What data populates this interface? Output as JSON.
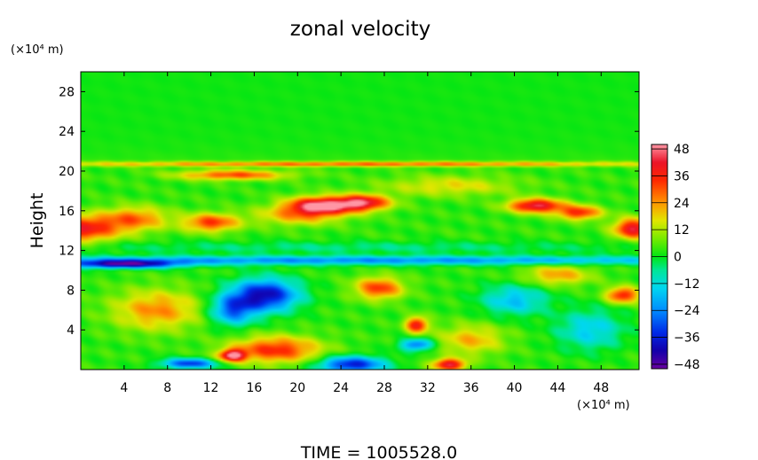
{
  "chart_data": {
    "type": "heatmap",
    "title": "zonal velocity",
    "xlabel": "",
    "ylabel": "Height",
    "x_unit": "(×10⁴ m)",
    "y_unit": "(×10⁴ m)",
    "xlim": [
      0,
      51.5
    ],
    "ylim": [
      0,
      30
    ],
    "x_ticks": [
      4,
      8,
      12,
      16,
      20,
      24,
      28,
      32,
      36,
      40,
      44,
      48
    ],
    "y_ticks": [
      4,
      8,
      12,
      16,
      20,
      24,
      28
    ],
    "colorbar": {
      "range": [
        -50,
        50
      ],
      "ticks": [
        48,
        36,
        24,
        12,
        0,
        -12,
        -24,
        -36,
        -48
      ],
      "tick_labels": [
        "48",
        "36",
        "24",
        "12",
        "0",
        "−12",
        "−24",
        "−36",
        "−48"
      ]
    },
    "background_value": 3,
    "features": [
      {
        "x": 0,
        "y": 14.2,
        "sx": 3.5,
        "sy": 1.3,
        "v": 36
      },
      {
        "x": 5,
        "y": 15.2,
        "sx": 3.0,
        "sy": 1.2,
        "v": 24
      },
      {
        "x": 12,
        "y": 14.8,
        "sx": 2.5,
        "sy": 0.9,
        "v": 30
      },
      {
        "x": 22,
        "y": 16.5,
        "sx": 3.0,
        "sy": 0.9,
        "v": 45
      },
      {
        "x": 26,
        "y": 16.8,
        "sx": 2.5,
        "sy": 0.8,
        "v": 40
      },
      {
        "x": 20,
        "y": 15.5,
        "sx": 4.0,
        "sy": 1.0,
        "v": 18
      },
      {
        "x": 42,
        "y": 16.5,
        "sx": 2.5,
        "sy": 0.7,
        "v": 42
      },
      {
        "x": 46,
        "y": 15.8,
        "sx": 2.0,
        "sy": 0.7,
        "v": 32
      },
      {
        "x": 51,
        "y": 14.2,
        "sx": 1.8,
        "sy": 1.0,
        "v": 40
      },
      {
        "x": 14,
        "y": 19.6,
        "sx": 5.0,
        "sy": 0.5,
        "v": 28
      },
      {
        "x": 34,
        "y": 18.5,
        "sx": 6.0,
        "sy": 1.0,
        "v": 14
      },
      {
        "x": 25,
        "y": 20.7,
        "sx": 30,
        "sy": 0.25,
        "v": 26
      },
      {
        "x": 25,
        "y": 11.0,
        "sx": 40,
        "sy": 0.45,
        "v": -26
      },
      {
        "x": 4,
        "y": 10.6,
        "sx": 5.0,
        "sy": 0.4,
        "v": -44
      },
      {
        "x": 25,
        "y": 12.3,
        "sx": 30,
        "sy": 0.6,
        "v": -8
      },
      {
        "x": 17,
        "y": 7.5,
        "sx": 3.0,
        "sy": 1.6,
        "v": -44
      },
      {
        "x": 14,
        "y": 6.0,
        "sx": 2.0,
        "sy": 1.5,
        "v": -30
      },
      {
        "x": 27.5,
        "y": 8.2,
        "sx": 2.2,
        "sy": 1.1,
        "v": 30
      },
      {
        "x": 18,
        "y": 2.0,
        "sx": 4.0,
        "sy": 1.3,
        "v": 32
      },
      {
        "x": 14,
        "y": 1.4,
        "sx": 1.2,
        "sy": 0.6,
        "v": 44
      },
      {
        "x": 25,
        "y": 0.5,
        "sx": 3.0,
        "sy": 0.8,
        "v": -40
      },
      {
        "x": 10,
        "y": 0.6,
        "sx": 2.5,
        "sy": 0.5,
        "v": -36
      },
      {
        "x": 34,
        "y": 0.5,
        "sx": 1.5,
        "sy": 0.6,
        "v": 40
      },
      {
        "x": 31,
        "y": 4.5,
        "sx": 1.0,
        "sy": 0.8,
        "v": 36
      },
      {
        "x": 31,
        "y": 2.5,
        "sx": 1.5,
        "sy": 0.6,
        "v": -30
      },
      {
        "x": 7,
        "y": 6.0,
        "sx": 4.0,
        "sy": 2.0,
        "v": 22
      },
      {
        "x": 40,
        "y": 7.0,
        "sx": 3.0,
        "sy": 1.5,
        "v": -20
      },
      {
        "x": 47,
        "y": 4.0,
        "sx": 3.0,
        "sy": 2.0,
        "v": -18
      },
      {
        "x": 36,
        "y": 3.0,
        "sx": 3.0,
        "sy": 1.5,
        "v": 18
      },
      {
        "x": 50,
        "y": 7.5,
        "sx": 1.5,
        "sy": 0.8,
        "v": 34
      },
      {
        "x": 44,
        "y": 9.5,
        "sx": 3.0,
        "sy": 1.0,
        "v": 20
      }
    ]
  },
  "footer": {
    "time_label": "TIME = 1005528.0"
  }
}
